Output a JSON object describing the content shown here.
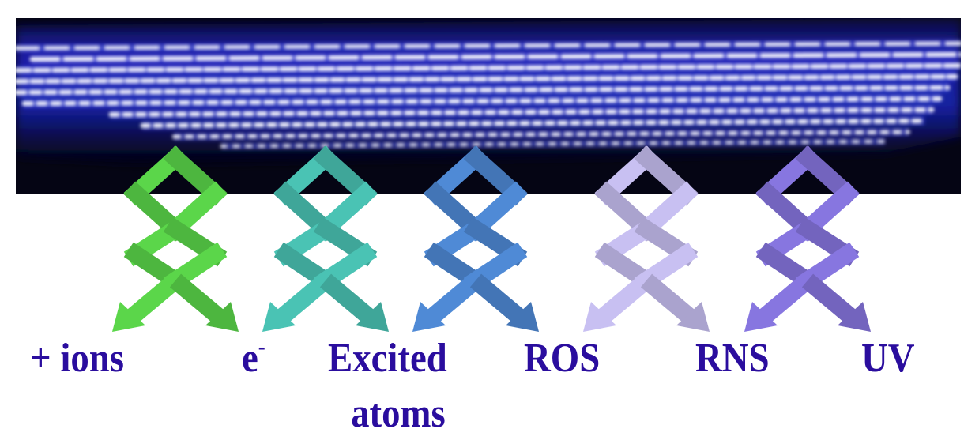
{
  "colors": {
    "label_text": "#2a0d9e",
    "plasma_glow": "#4a5cff",
    "plasma_core": "#ffffff",
    "panel_bg": "#050514"
  },
  "species": [
    {
      "id": "ions",
      "label": "+ ions",
      "color": "#5bd64a"
    },
    {
      "id": "electrons",
      "label": "e",
      "superscript": "-",
      "color": "#4ac3b4"
    },
    {
      "id": "excited",
      "label_line1": "Excited",
      "label_line2": "atoms",
      "color": "#4f8ad6"
    },
    {
      "id": "ros",
      "label": "ROS",
      "color": "#c8c0f2"
    },
    {
      "id": "rns",
      "label": "RNS",
      "color": "#8776e0"
    },
    {
      "id": "uv",
      "label": "UV"
    }
  ]
}
